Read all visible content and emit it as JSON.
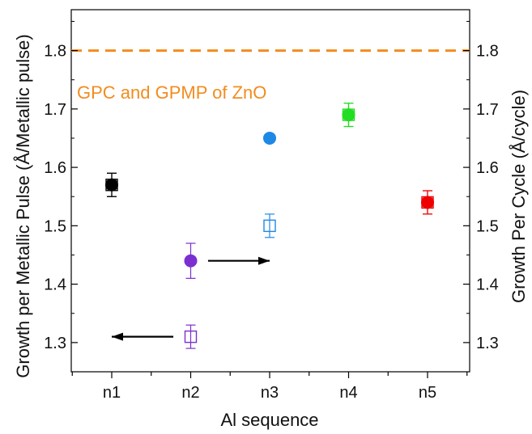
{
  "chart_data": {
    "type": "scatter",
    "title": "",
    "xlabel": "Al sequence",
    "ylabel_left": "Growth per Metallic Pulse (Å/Metallic pulse)",
    "ylabel_right": "Growth Per Cycle (Å/cycle)",
    "categories": [
      "n1",
      "n2",
      "n3",
      "n4",
      "n5"
    ],
    "category_colors": [
      "#000000",
      "#7b2fd1",
      "#1e88e5",
      "#22dd22",
      "#ee0000"
    ],
    "ylim": [
      1.25,
      1.87
    ],
    "yticks": [
      1.3,
      1.4,
      1.5,
      1.6,
      1.7,
      1.8
    ],
    "ytick_labels": [
      "1.3",
      "1.4",
      "1.5",
      "1.6",
      "1.7",
      "1.8"
    ],
    "grid": false,
    "series": [
      {
        "marker": "filled-circle",
        "axis": "left",
        "values": [
          1.57,
          1.44,
          1.65,
          1.69,
          1.54
        ],
        "errors": [
          0.02,
          0.03,
          0.0,
          0.02,
          0.02
        ]
      },
      {
        "marker": "open-square",
        "axis": "right",
        "values": [
          1.57,
          1.31,
          1.5,
          1.69,
          1.54
        ],
        "errors": [
          0.02,
          0.02,
          0.02,
          0.02,
          0.02
        ]
      }
    ],
    "reference_line": {
      "y": 1.8,
      "label": "GPC and GPMP of ZnO",
      "color": "#f28c1e",
      "style": "dashed"
    },
    "arrows": [
      {
        "from_x": 2.22,
        "to_x": 3.0,
        "y": 1.44,
        "direction": "right",
        "refers_to": "right"
      },
      {
        "from_x": 1.78,
        "to_x": 1.0,
        "y": 1.31,
        "direction": "left",
        "refers_to": "left"
      }
    ]
  }
}
